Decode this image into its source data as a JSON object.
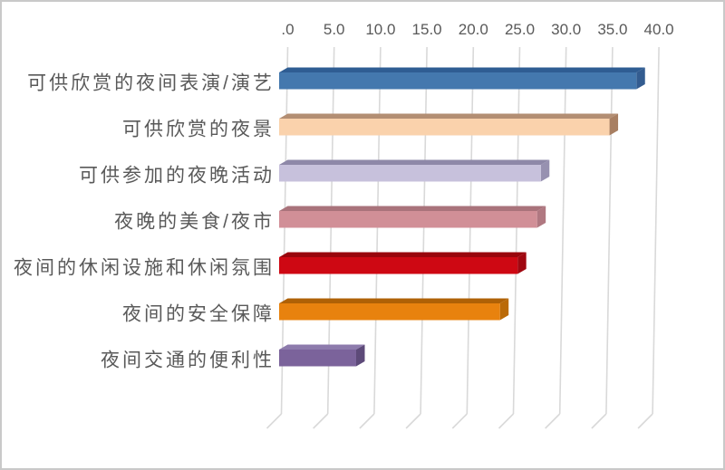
{
  "chart_data": {
    "type": "bar",
    "orientation": "horizontal",
    "style": "3d",
    "title": "",
    "xlabel": "",
    "ylabel": "",
    "categories": [
      "可供欣赏的夜间表演/演艺",
      "可供欣赏的夜景",
      "可供参加的夜晚活动",
      "夜晚的美食/夜市",
      "夜间的休闲设施和休闲氛围",
      "夜间的安全保障",
      "夜间交通的便利性"
    ],
    "values": [
      38.5,
      35.6,
      28.2,
      27.8,
      25.7,
      23.8,
      8.3
    ],
    "xlim": [
      0,
      40
    ],
    "x_tick_values": [
      0,
      5,
      10,
      15,
      20,
      25,
      30,
      35,
      40
    ],
    "x_tick_labels": [
      ".0",
      "5.0",
      "10.0",
      "15.0",
      "20.0",
      "25.0",
      "30.0",
      "35.0",
      "40.0"
    ],
    "grid": true,
    "legend": "none",
    "bar_colors": [
      {
        "front": "#4478AE",
        "top": "#2F5D93",
        "side": "#335C90"
      },
      {
        "front": "#FAD2AC",
        "top": "#B38E73",
        "side": "#A87F62"
      },
      {
        "front": "#C7C1DC",
        "top": "#8E88A8",
        "side": "#9791B0"
      },
      {
        "front": "#D18F97",
        "top": "#A9737B",
        "side": "#B07881"
      },
      {
        "front": "#CE0813",
        "top": "#99050C",
        "side": "#A00710"
      },
      {
        "front": "#E8820E",
        "top": "#AF6106",
        "side": "#BA6A08"
      },
      {
        "front": "#7B639B",
        "top": "#8D7BAC",
        "side": "#5D4A79"
      }
    ],
    "colors": {
      "text": "#595959",
      "gridline": "#D9D9D9",
      "background": "#FFFFFF",
      "frame_border": "#C9C9C9"
    }
  }
}
